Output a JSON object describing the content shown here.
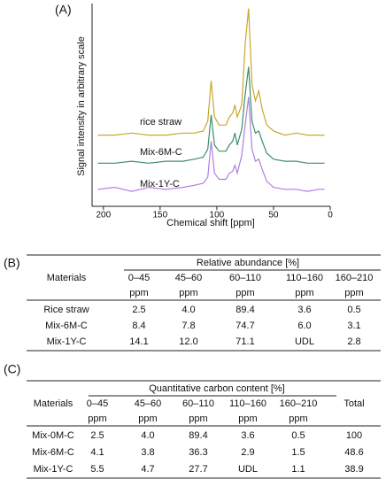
{
  "chart_data": {
    "type": "line",
    "panel_label": "(A)",
    "xlabel": "Chemical shift [ppm]",
    "ylabel": "Signal intensity in arbitrary scale",
    "xlim": [
      210,
      0
    ],
    "xticks": [
      200,
      150,
      100,
      50,
      0
    ],
    "ylim": [
      0,
      100
    ],
    "x": [
      205,
      190,
      175,
      160,
      145,
      130,
      120,
      112,
      108,
      105,
      102,
      98,
      92,
      89,
      86,
      84,
      82,
      78,
      75,
      72,
      69,
      66,
      63,
      60,
      56,
      50,
      40,
      30,
      20,
      10,
      5
    ],
    "series": [
      {
        "name": "rice straw",
        "color": "#c9a72b",
        "values": [
          35,
          35,
          36,
          35,
          35,
          36,
          36,
          37,
          42,
          62,
          44,
          40,
          40,
          44,
          46,
          50,
          44,
          50,
          80,
          98,
          60,
          52,
          57,
          48,
          40,
          37,
          35,
          36,
          35,
          35,
          35
        ]
      },
      {
        "name": "Mix-6M-C",
        "color": "#3e8e6c",
        "values": [
          21,
          21,
          22,
          21,
          22,
          22,
          23,
          24,
          28,
          45,
          30,
          27,
          27,
          30,
          32,
          36,
          30,
          38,
          55,
          69,
          42,
          36,
          37,
          32,
          26,
          23,
          22,
          22,
          21,
          21,
          21
        ]
      },
      {
        "name": "Mix-1Y-C",
        "color": "#b07fe0",
        "values": [
          8,
          9,
          7,
          9,
          8,
          9,
          10,
          11,
          14,
          32,
          16,
          13,
          13,
          16,
          17,
          20,
          16,
          25,
          40,
          54,
          28,
          22,
          23,
          18,
          12,
          9,
          8,
          8,
          7,
          8,
          8
        ]
      }
    ]
  },
  "table_b": {
    "panel_label": "(B)",
    "row_header": "Materials",
    "group_header": "Relative abundance [%]",
    "columns": [
      "0–45",
      "45–60",
      "60–110",
      "110–160",
      "160–210"
    ],
    "unit": "ppm",
    "rows": [
      [
        "Rice straw",
        "2.5",
        "4.0",
        "89.4",
        "3.6",
        "0.5"
      ],
      [
        "Mix-6M-C",
        "8.4",
        "7.8",
        "74.7",
        "6.0",
        "3.1"
      ],
      [
        "Mix-1Y-C",
        "14.1",
        "12.0",
        "71.1",
        "UDL",
        "2.8"
      ]
    ]
  },
  "table_c": {
    "panel_label": "(C)",
    "row_header": "Materials",
    "group_header": "Quantitative carbon content [%]",
    "columns": [
      "0–45",
      "45–60",
      "60–110",
      "110–160",
      "160–210"
    ],
    "unit": "ppm",
    "total_header": "Total",
    "rows": [
      [
        "Mix-0M-C",
        "2.5",
        "4.0",
        "89.4",
        "3.6",
        "0.5",
        "100"
      ],
      [
        "Mix-6M-C",
        "4.1",
        "3.8",
        "36.3",
        "2.9",
        "1.5",
        "48.6"
      ],
      [
        "Mix-1Y-C",
        "5.5",
        "4.7",
        "27.7",
        "UDL",
        "1.1",
        "38.9"
      ]
    ]
  }
}
